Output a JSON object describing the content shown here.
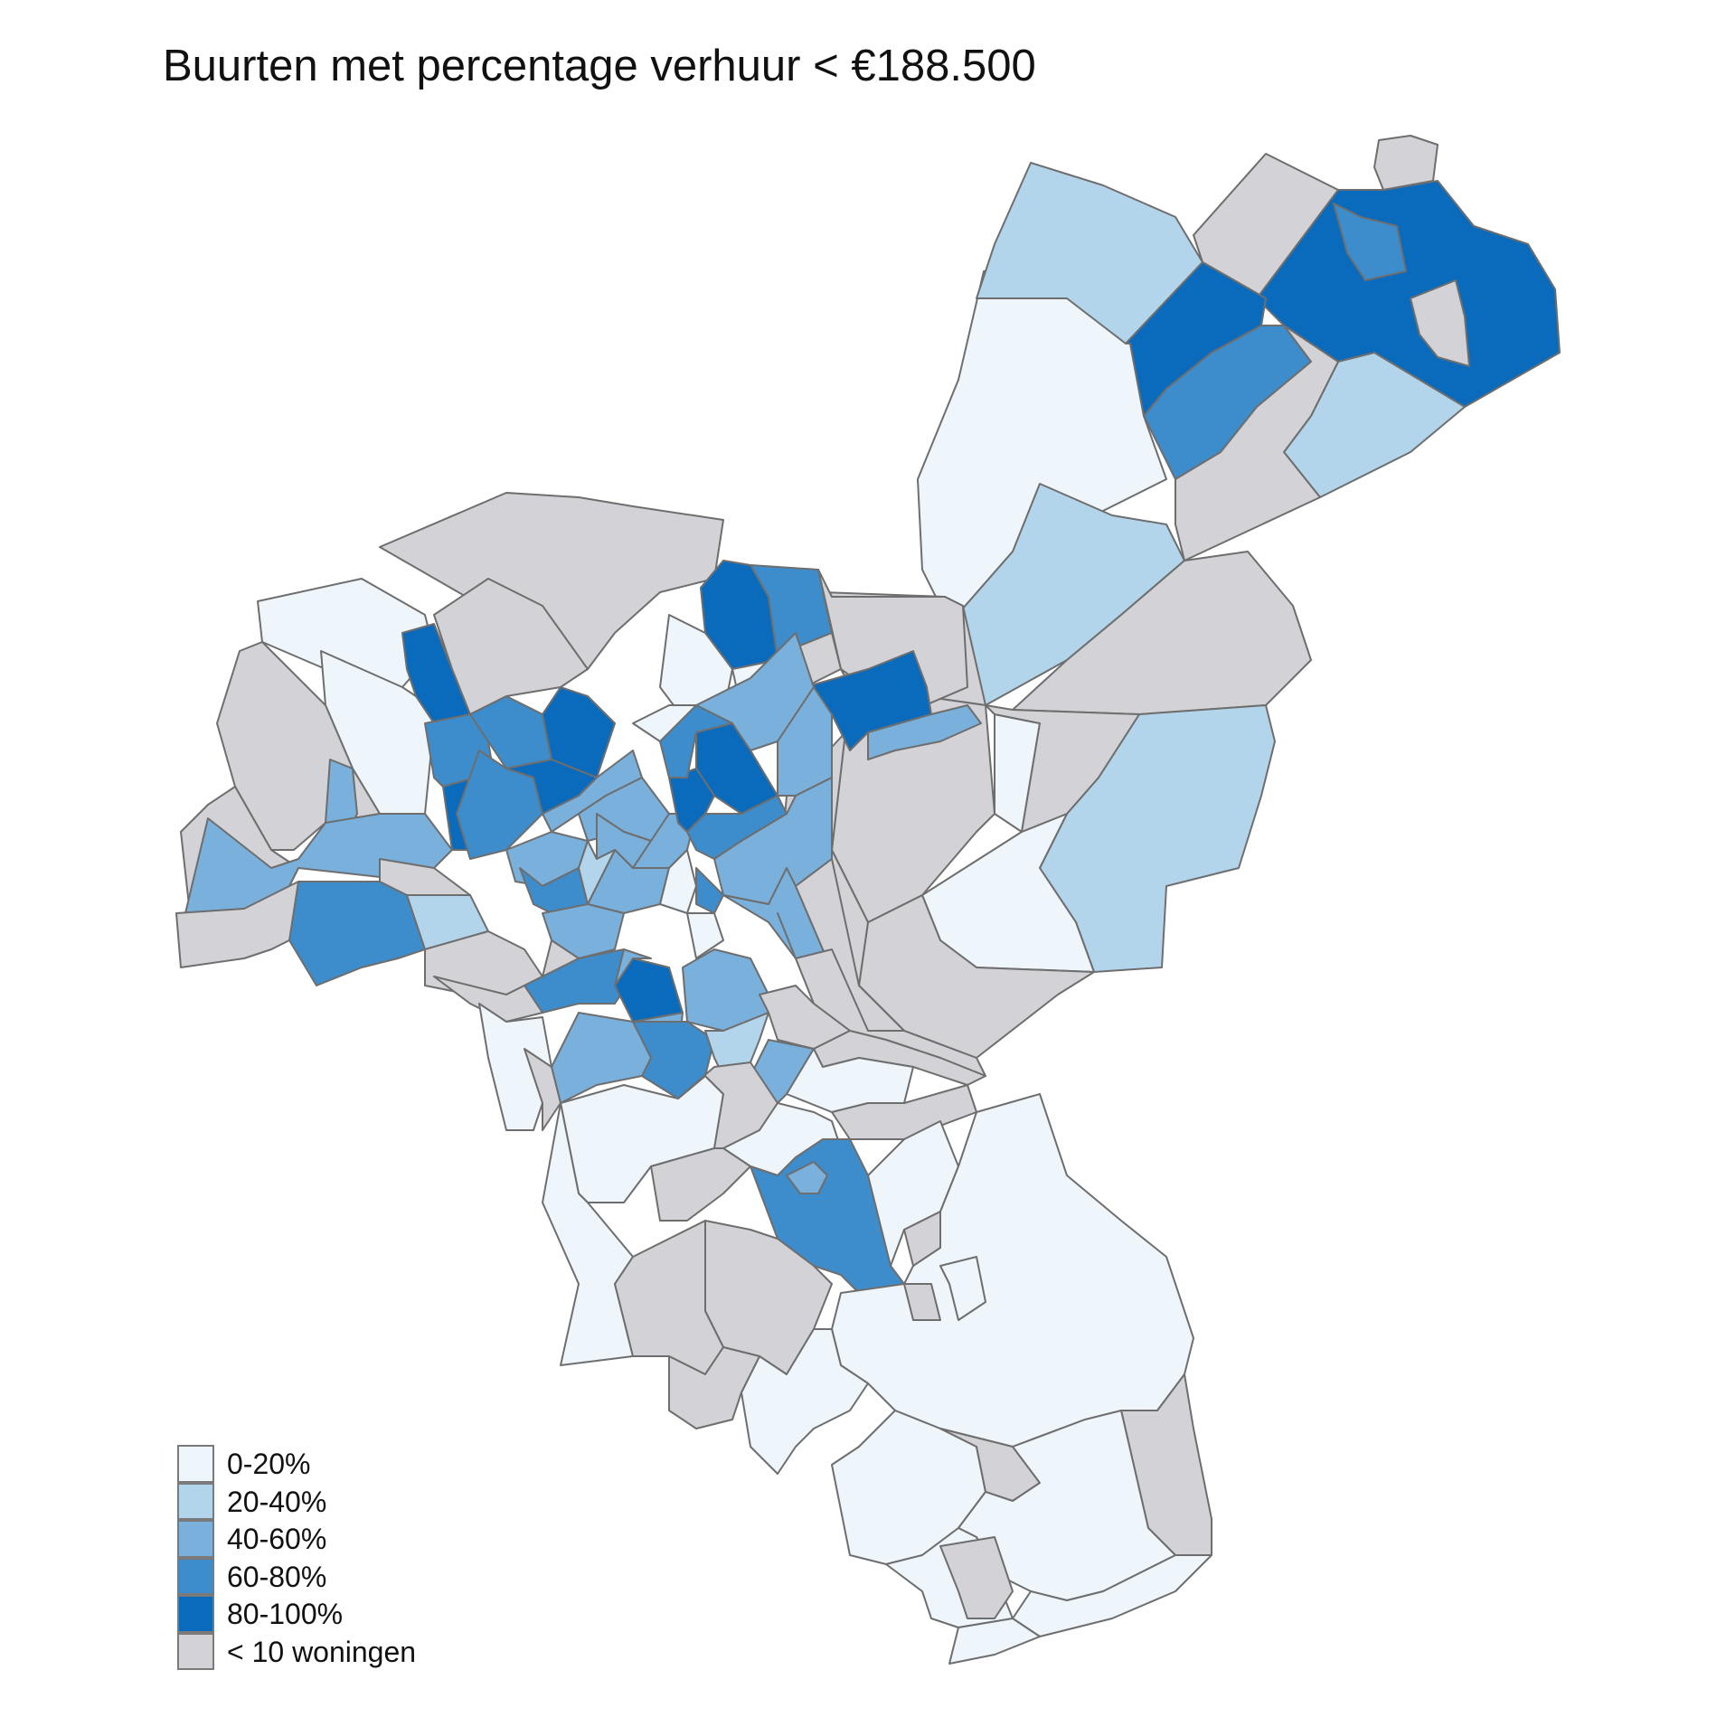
{
  "title": "Buurten met percentage verhuur < €188.500",
  "palette": {
    "c0": "#eef5fb",
    "c1": "#b3d5ec",
    "c2": "#79b0dc",
    "c3": "#3d8ccb",
    "c4": "#0a6bbd",
    "na": "#d3d2d6"
  },
  "legend": {
    "items": [
      {
        "label": "0-20%",
        "color": "#eef5fb"
      },
      {
        "label": "20-40%",
        "color": "#b3d5ec"
      },
      {
        "label": "40-60%",
        "color": "#79b0dc"
      },
      {
        "label": "60-80%",
        "color": "#3d8ccb"
      },
      {
        "label": "80-100%",
        "color": "#0a6bbd"
      },
      {
        "label": "< 10 woningen",
        "color": "#d3d2d6"
      }
    ]
  }
}
